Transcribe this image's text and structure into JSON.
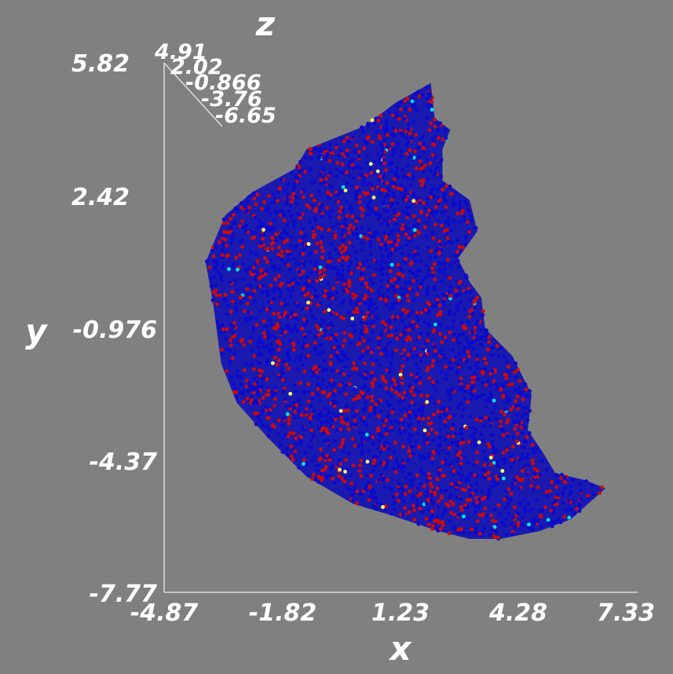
{
  "chart_data": {
    "type": "scatter",
    "projection": "3d",
    "xlabel": "x",
    "ylabel": "y",
    "zlabel": "z",
    "x_ticks": [
      "-4.87",
      "-1.82",
      "1.23",
      "4.28",
      "7.33"
    ],
    "y_ticks": [
      "5.82",
      "2.42",
      "-0.976",
      "-4.37",
      "-7.77"
    ],
    "z_ticks": [
      "4.91",
      "2.02",
      "-0.866",
      "-3.76",
      "-6.65"
    ],
    "xlim": [
      -4.87,
      7.33
    ],
    "ylim": [
      -7.77,
      5.82
    ],
    "zlim": [
      -6.65,
      4.91
    ],
    "grid": false,
    "legend": "none",
    "colors": {
      "background": "#808080",
      "axes": "#dcdcdc",
      "text": "#ffffff",
      "point_colormap": [
        "#0000cc",
        "#cc0000",
        "#00e5e5",
        "#ffff66"
      ]
    },
    "point_cloud_outline": [
      [
        2.0,
        5.3
      ],
      [
        2.1,
        4.4
      ],
      [
        2.5,
        4.1
      ],
      [
        2.3,
        3.6
      ],
      [
        2.3,
        2.8
      ],
      [
        3.0,
        2.3
      ],
      [
        3.2,
        1.5
      ],
      [
        2.7,
        0.8
      ],
      [
        3.0,
        0.2
      ],
      [
        3.3,
        -0.2
      ],
      [
        3.4,
        -1.0
      ],
      [
        4.1,
        -1.7
      ],
      [
        4.6,
        -2.7
      ],
      [
        4.5,
        -3.6
      ],
      [
        4.9,
        -4.2
      ],
      [
        5.2,
        -4.7
      ],
      [
        6.0,
        -4.9
      ],
      [
        6.5,
        -5.1
      ],
      [
        5.6,
        -5.9
      ],
      [
        4.8,
        -6.2
      ],
      [
        3.8,
        -6.4
      ],
      [
        3.0,
        -6.4
      ],
      [
        2.2,
        -6.2
      ],
      [
        1.0,
        -5.8
      ],
      [
        0.0,
        -5.5
      ],
      [
        -1.2,
        -4.8
      ],
      [
        -2.2,
        -3.8
      ],
      [
        -3.0,
        -2.9
      ],
      [
        -3.4,
        -1.9
      ],
      [
        -3.6,
        -0.4
      ],
      [
        -3.8,
        0.7
      ],
      [
        -3.3,
        1.9
      ],
      [
        -2.6,
        2.5
      ],
      [
        -1.5,
        3.1
      ],
      [
        -1.2,
        3.6
      ],
      [
        0.3,
        4.2
      ],
      [
        1.1,
        4.8
      ]
    ],
    "point_groups": [
      {
        "color": "#0a0acc",
        "share": 0.62
      },
      {
        "color": "#cc0a0a",
        "share": 0.36
      },
      {
        "color": "#00e5e5",
        "share": 0.01
      },
      {
        "color": "#ffff66",
        "share": 0.01
      }
    ]
  }
}
